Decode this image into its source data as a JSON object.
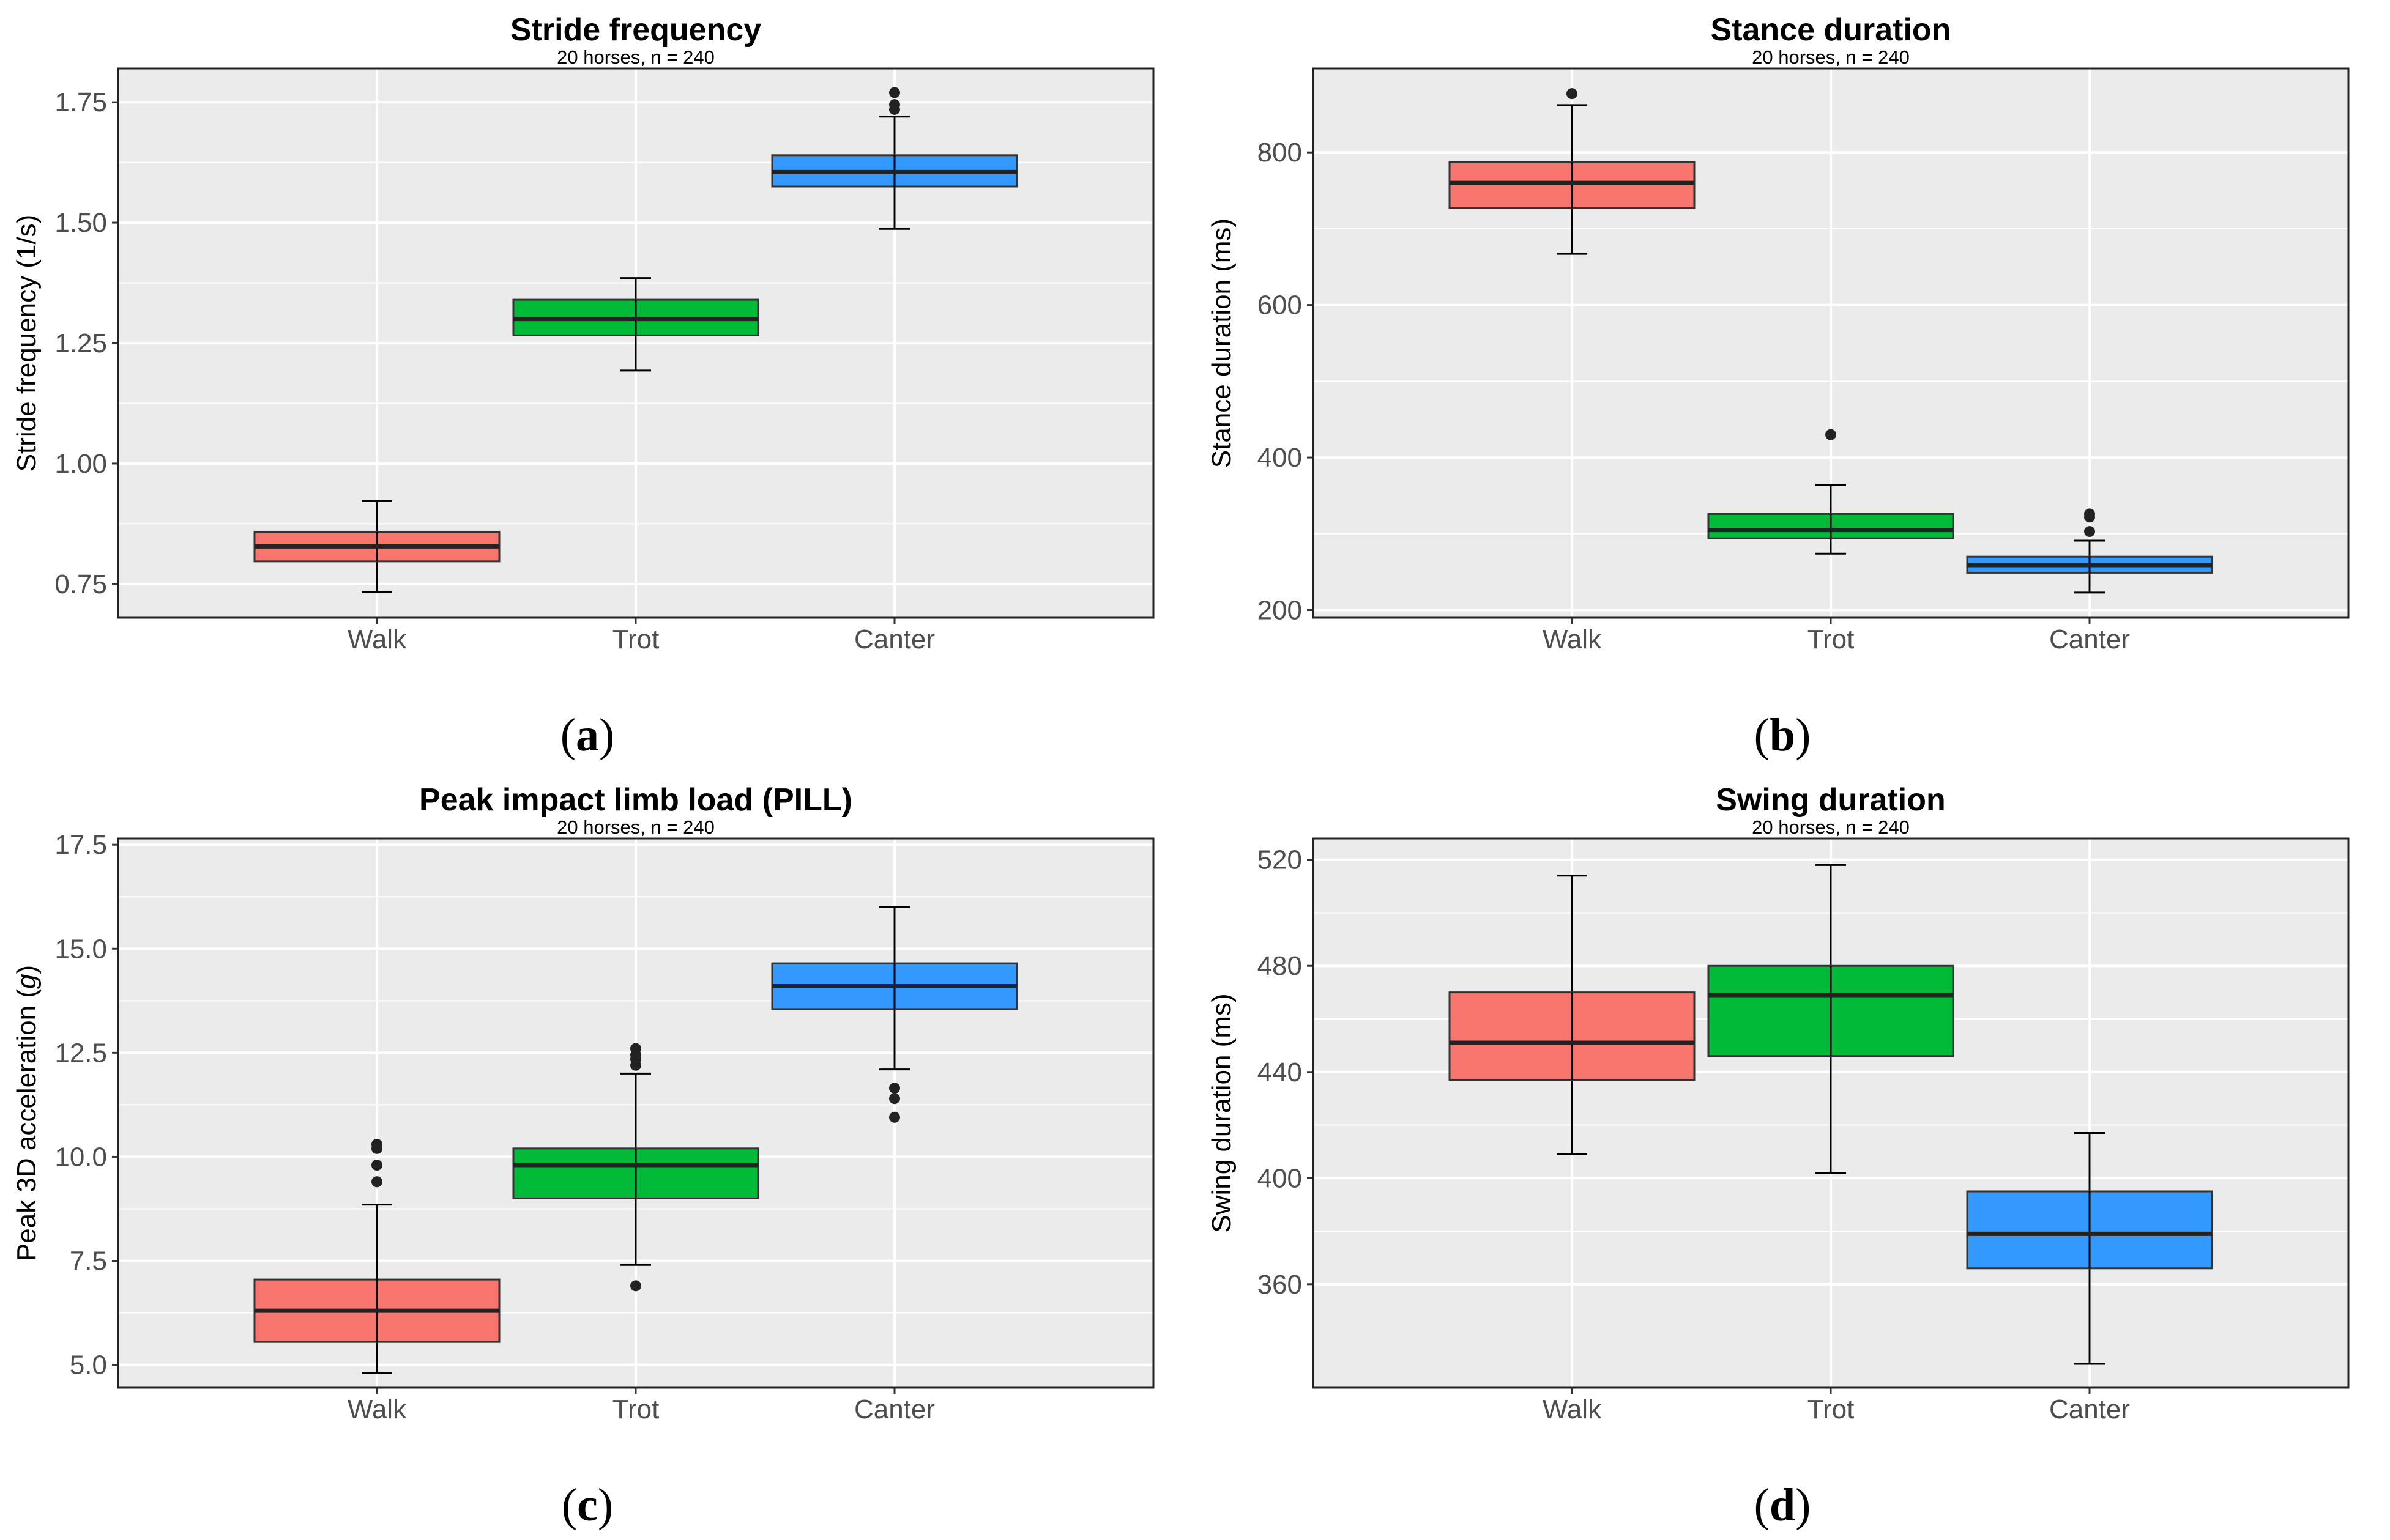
{
  "colors": {
    "walk": "#F8766D",
    "trot": "#00BA38",
    "canter": "#3399FF",
    "panel_bg": "#EBEBEB",
    "grid": "#FFFFFF"
  },
  "chart_data": [
    {
      "id": "a",
      "type": "box",
      "title": "Stride frequency",
      "subtitle": "20 horses, n = 240",
      "ylabel": "Stride frequency (1/s)",
      "ylabel_italic_part": "",
      "ylabel_suffix": "",
      "ylim": [
        0.68,
        1.82
      ],
      "yticks": [
        0.75,
        1.0,
        1.25,
        1.5,
        1.75
      ],
      "ytick_labels": [
        "0.75",
        "1.00",
        "1.25",
        "1.50",
        "1.75"
      ],
      "categories": [
        "Walk",
        "Trot",
        "Canter"
      ],
      "boxes": [
        {
          "name": "Walk",
          "color": "walk",
          "q1": 0.797,
          "median": 0.828,
          "q3": 0.858,
          "whisker_low": 0.733,
          "whisker_high": 0.922,
          "outliers": []
        },
        {
          "name": "Trot",
          "color": "trot",
          "q1": 1.266,
          "median": 1.3,
          "q3": 1.34,
          "whisker_low": 1.193,
          "whisker_high": 1.385,
          "outliers": []
        },
        {
          "name": "Canter",
          "color": "canter",
          "q1": 1.575,
          "median": 1.605,
          "q3": 1.64,
          "whisker_low": 1.487,
          "whisker_high": 1.72,
          "outliers": [
            1.735,
            1.745,
            1.77
          ]
        }
      ],
      "caption_letter": "a"
    },
    {
      "id": "b",
      "type": "box",
      "title": "Stance duration",
      "subtitle": "20 horses, n = 240",
      "ylabel": "Stance duration (ms)",
      "ylabel_italic_part": "",
      "ylabel_suffix": "",
      "ylim": [
        190,
        910
      ],
      "yticks": [
        200,
        400,
        600,
        800
      ],
      "ytick_labels": [
        "200",
        "400",
        "600",
        "800"
      ],
      "categories": [
        "Walk",
        "Trot",
        "Canter"
      ],
      "boxes": [
        {
          "name": "Walk",
          "color": "walk",
          "q1": 727,
          "median": 760,
          "q3": 787,
          "whisker_low": 667,
          "whisker_high": 862,
          "outliers": [
            877
          ]
        },
        {
          "name": "Trot",
          "color": "trot",
          "q1": 294,
          "median": 305,
          "q3": 326,
          "whisker_low": 274,
          "whisker_high": 364,
          "outliers": [
            430
          ]
        },
        {
          "name": "Canter",
          "color": "canter",
          "q1": 249,
          "median": 259,
          "q3": 270,
          "whisker_low": 223,
          "whisker_high": 291,
          "outliers": [
            303,
            322,
            326
          ]
        }
      ],
      "caption_letter": "b"
    },
    {
      "id": "c",
      "type": "box",
      "title": "Peak impact limb load (PILL)",
      "subtitle": "20 horses, n = 240",
      "ylabel": "Peak 3D acceleration (",
      "ylabel_italic_part": "g",
      "ylabel_suffix": ")",
      "ylim": [
        4.45,
        17.65
      ],
      "yticks": [
        5.0,
        7.5,
        10.0,
        12.5,
        15.0,
        17.5
      ],
      "ytick_labels": [
        "5.0",
        "7.5",
        "10.0",
        "12.5",
        "15.0",
        "17.5"
      ],
      "categories": [
        "Walk",
        "Trot",
        "Canter"
      ],
      "boxes": [
        {
          "name": "Walk",
          "color": "walk",
          "q1": 5.55,
          "median": 6.3,
          "q3": 7.05,
          "whisker_low": 4.8,
          "whisker_high": 8.85,
          "outliers": [
            9.4,
            9.8,
            10.2,
            10.3
          ]
        },
        {
          "name": "Trot",
          "color": "trot",
          "q1": 9.0,
          "median": 9.8,
          "q3": 10.2,
          "whisker_low": 7.4,
          "whisker_high": 12.0,
          "outliers": [
            6.9,
            12.2,
            12.35,
            12.45,
            12.6
          ]
        },
        {
          "name": "Canter",
          "color": "canter",
          "q1": 13.55,
          "median": 14.1,
          "q3": 14.65,
          "whisker_low": 12.1,
          "whisker_high": 16.0,
          "outliers": [
            10.95,
            11.4,
            11.65
          ]
        }
      ],
      "caption_letter": "c"
    },
    {
      "id": "d",
      "type": "box",
      "title": "Swing duration",
      "subtitle": "20 horses, n = 240",
      "ylabel": "Swing duration (ms)",
      "ylabel_italic_part": "",
      "ylabel_suffix": "",
      "ylim": [
        321,
        528
      ],
      "yticks": [
        360,
        400,
        440,
        480,
        520
      ],
      "ytick_labels": [
        "360",
        "400",
        "440",
        "480",
        "520"
      ],
      "categories": [
        "Walk",
        "Trot",
        "Canter"
      ],
      "boxes": [
        {
          "name": "Walk",
          "color": "walk",
          "q1": 437,
          "median": 451,
          "q3": 470,
          "whisker_low": 409,
          "whisker_high": 514,
          "outliers": []
        },
        {
          "name": "Trot",
          "color": "trot",
          "q1": 446,
          "median": 469,
          "q3": 480,
          "whisker_low": 402,
          "whisker_high": 518,
          "outliers": []
        },
        {
          "name": "Canter",
          "color": "canter",
          "q1": 366,
          "median": 379,
          "q3": 395,
          "whisker_low": 330,
          "whisker_high": 417,
          "outliers": []
        }
      ],
      "caption_letter": "d"
    }
  ]
}
